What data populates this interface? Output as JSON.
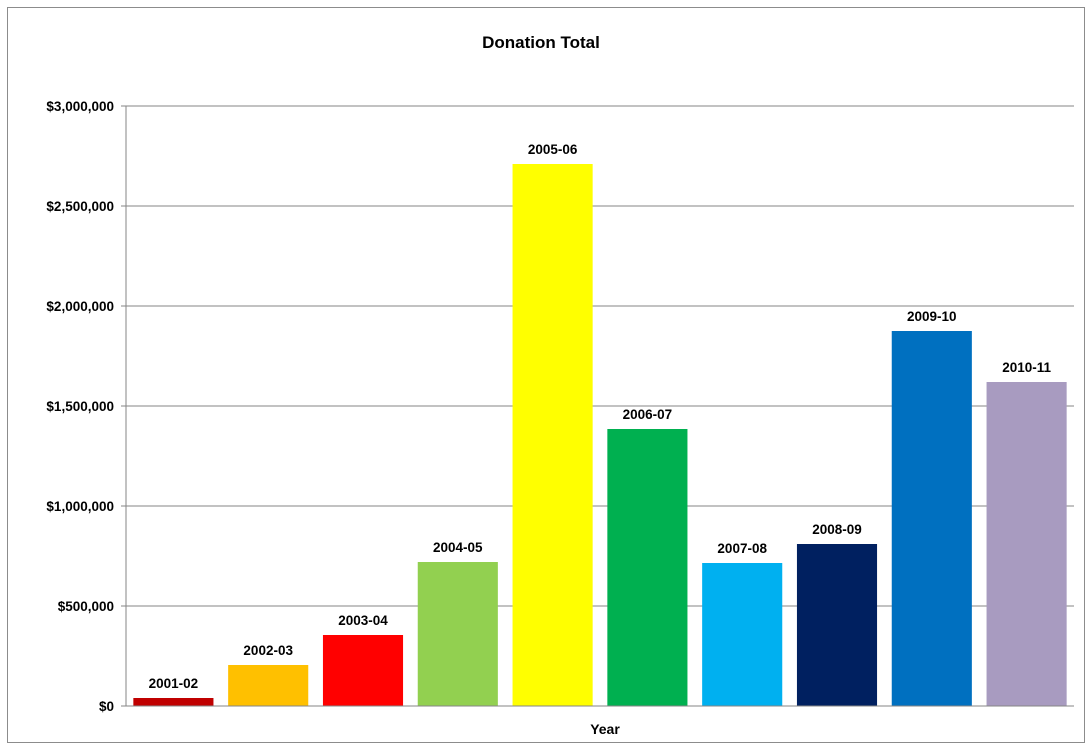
{
  "chart_data": {
    "type": "bar",
    "title": "Donation Total",
    "xlabel": "Year",
    "ylabel": "",
    "ylim": [
      0,
      3000000
    ],
    "yticks": [
      0,
      500000,
      1000000,
      1500000,
      2000000,
      2500000,
      3000000
    ],
    "ytick_labels": [
      "$0",
      "$500,000",
      "$1,000,000",
      "$1,500,000",
      "$2,000,000",
      "$2,500,000",
      "$3,000,000"
    ],
    "grid": true,
    "legend": "none",
    "categories": [
      "2001-02",
      "2002-03",
      "2003-04",
      "2004-05",
      "2005-06",
      "2006-07",
      "2007-08",
      "2008-09",
      "2009-10",
      "2010-11"
    ],
    "values": [
      40000,
      205000,
      355000,
      720000,
      2710000,
      1385000,
      715000,
      810000,
      1875000,
      1620000
    ],
    "colors": [
      "#C00000",
      "#FFC000",
      "#FF0000",
      "#92D050",
      "#FFFF00",
      "#00B050",
      "#00B0F0",
      "#002060",
      "#0070C0",
      "#A89BC0"
    ]
  }
}
